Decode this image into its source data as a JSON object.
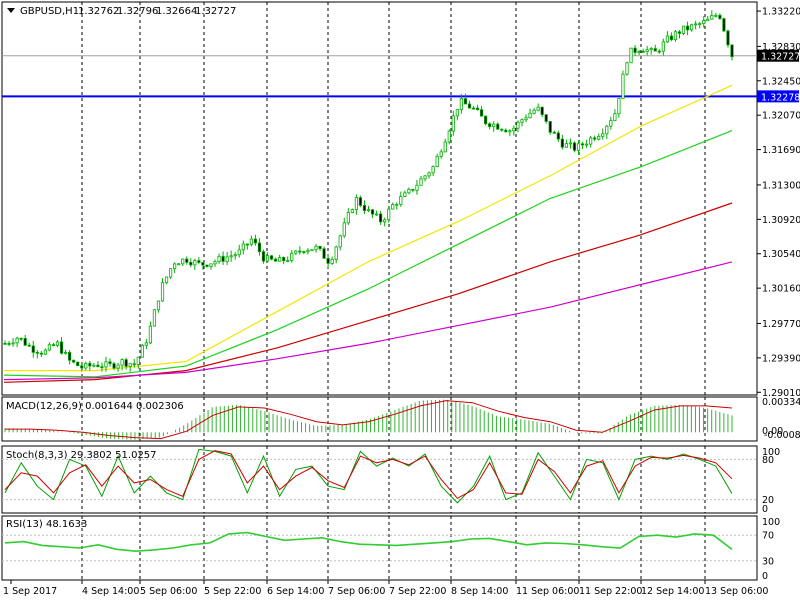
{
  "symbol_header": {
    "symbol": "GBPUSD,H1",
    "open": "1.32762",
    "high": "1.32796",
    "low": "1.32664",
    "close": "1.32727"
  },
  "price_axis": {
    "ticks": [
      "1.33220",
      "1.32830",
      "1.32450",
      "1.32070",
      "1.31690",
      "1.31300",
      "1.30920",
      "1.30540",
      "1.30160",
      "1.29770",
      "1.29390",
      "1.29010"
    ],
    "current_price_tag": "1.32727",
    "hline_tag": "1.32278"
  },
  "time_axis": {
    "labels": [
      "1 Sep 2017",
      "4 Sep 14:00",
      "5 Sep 06:00",
      "5 Sep 22:00",
      "6 Sep 14:00",
      "7 Sep 06:00",
      "7 Sep 22:00",
      "8 Sep 14:00",
      "11 Sep 06:00",
      "11 Sep 22:00",
      "12 Sep 14:00",
      "13 Sep 06:00"
    ]
  },
  "macd": {
    "label": "MACD(12,26,9) 0.001644 0.002306",
    "ticks": [
      "0.00334",
      "0.00",
      "-0.000823"
    ]
  },
  "stoch": {
    "label": "Stoch(8,3,3) 29.3802 51.0257",
    "ticks": [
      "100",
      "80",
      "20",
      "0"
    ]
  },
  "rsi": {
    "label": "RSI(13) 48.1633",
    "ticks": [
      "100",
      "70",
      "30",
      "0"
    ]
  },
  "colors": {
    "bull": "#00b000",
    "bear": "#00b000",
    "ma_yellow": "#f2e600",
    "ma_green": "#1ed21e",
    "ma_red": "#cc0000",
    "ma_magenta": "#cc00cc",
    "hline": "#0000ff",
    "stoch_main": "#00a000",
    "stoch_signal": "#cc0000",
    "rsi": "#32cd32",
    "macd_hist": "#32b432",
    "macd_signal": "#cc0000"
  },
  "chart_data": [
    {
      "type": "candlestick",
      "title": "GBPUSD,H1",
      "ylim": [
        1.2898,
        1.3332
      ],
      "close_samples": [
        1.2955,
        1.2962,
        1.295,
        1.2945,
        1.2955,
        1.2935,
        1.2928,
        1.2932,
        1.293,
        1.2935,
        1.2932,
        1.2962,
        1.3015,
        1.3045,
        1.3048,
        1.3042,
        1.3045,
        1.305,
        1.3055,
        1.307,
        1.3048,
        1.3045,
        1.305,
        1.306,
        1.306,
        1.3045,
        1.308,
        1.3115,
        1.31,
        1.309,
        1.311,
        1.312,
        1.3135,
        1.315,
        1.3185,
        1.3222,
        1.3215,
        1.32,
        1.3195,
        1.319,
        1.3205,
        1.3215,
        1.319,
        1.3175,
        1.317,
        1.318,
        1.319,
        1.321,
        1.3275,
        1.3282,
        1.3275,
        1.329,
        1.33,
        1.3305,
        1.331,
        1.332,
        1.3273
      ],
      "horizontal_line": 1.32278,
      "moving_averages": [
        {
          "color": "yellow",
          "values": [
            1.2925,
            1.2925,
            1.2935,
            1.299,
            1.3045,
            1.309,
            1.314,
            1.3195,
            1.324
          ]
        },
        {
          "color": "green",
          "values": [
            1.292,
            1.2918,
            1.293,
            1.297,
            1.3015,
            1.3065,
            1.3115,
            1.315,
            1.319
          ]
        },
        {
          "color": "red",
          "values": [
            1.2912,
            1.2915,
            1.2925,
            1.295,
            1.298,
            1.301,
            1.3045,
            1.3075,
            1.311
          ]
        },
        {
          "color": "magenta",
          "values": [
            1.2915,
            1.2917,
            1.2923,
            1.2938,
            1.2955,
            1.2975,
            1.2995,
            1.302,
            1.3045
          ]
        }
      ]
    },
    {
      "type": "bar",
      "title": "MACD(12,26,9) 0.001644 0.002306",
      "ylim": [
        -0.000823,
        0.00334
      ],
      "values": [
        0.0004,
        0.0003,
        0.0001,
        -0.0002,
        -0.0006,
        -0.0007,
        -0.0005,
        0.0008,
        0.0024,
        0.0026,
        0.002,
        0.0012,
        0.0006,
        0.0007,
        0.0012,
        0.0021,
        0.003,
        0.0031,
        0.0025,
        0.0015,
        0.0012,
        0.0008,
        -0.0001,
        -0.0001,
        0.0016,
        0.0025,
        0.0026,
        0.0023,
        0.0016
      ],
      "signal": [
        0.0003,
        0.0003,
        0.0002,
        0.0,
        -0.0003,
        -0.0005,
        -0.0006,
        0.0001,
        0.0016,
        0.0024,
        0.0023,
        0.0017,
        0.001,
        0.0007,
        0.001,
        0.0017,
        0.0025,
        0.003,
        0.0028,
        0.002,
        0.0014,
        0.001,
        0.0002,
        0.0,
        0.001,
        0.0021,
        0.0025,
        0.0025,
        0.0023
      ]
    },
    {
      "type": "line",
      "title": "Stoch(8,3,3) 29.3802 51.0257",
      "ylim": [
        0,
        100
      ],
      "series": [
        {
          "values": [
            30,
            75,
            40,
            20,
            80,
            70,
            25,
            85,
            30,
            55,
            30,
            20,
            95,
            92,
            85,
            30,
            85,
            25,
            65,
            70,
            40,
            35,
            92,
            70,
            82,
            70,
            88,
            40,
            15,
            40,
            85,
            20,
            30,
            90,
            55,
            20,
            80,
            75,
            20,
            80,
            85,
            80,
            88,
            80,
            70,
            29
          ]
        },
        {
          "values": [
            35,
            60,
            55,
            30,
            60,
            72,
            40,
            70,
            45,
            50,
            35,
            25,
            80,
            93,
            88,
            45,
            70,
            35,
            55,
            68,
            48,
            38,
            85,
            75,
            80,
            72,
            85,
            50,
            22,
            35,
            75,
            30,
            28,
            80,
            62,
            30,
            70,
            78,
            30,
            70,
            83,
            82,
            86,
            82,
            75,
            51
          ]
        }
      ]
    },
    {
      "type": "line",
      "title": "RSI(13) 48.1633",
      "ylim": [
        0,
        100
      ],
      "values": [
        58,
        60,
        54,
        52,
        50,
        55,
        48,
        45,
        47,
        50,
        55,
        58,
        72,
        74,
        68,
        62,
        64,
        66,
        60,
        56,
        55,
        54,
        56,
        58,
        60,
        64,
        65,
        60,
        55,
        58,
        57,
        55,
        52,
        50,
        68,
        70,
        67,
        72,
        70,
        48
      ]
    }
  ]
}
